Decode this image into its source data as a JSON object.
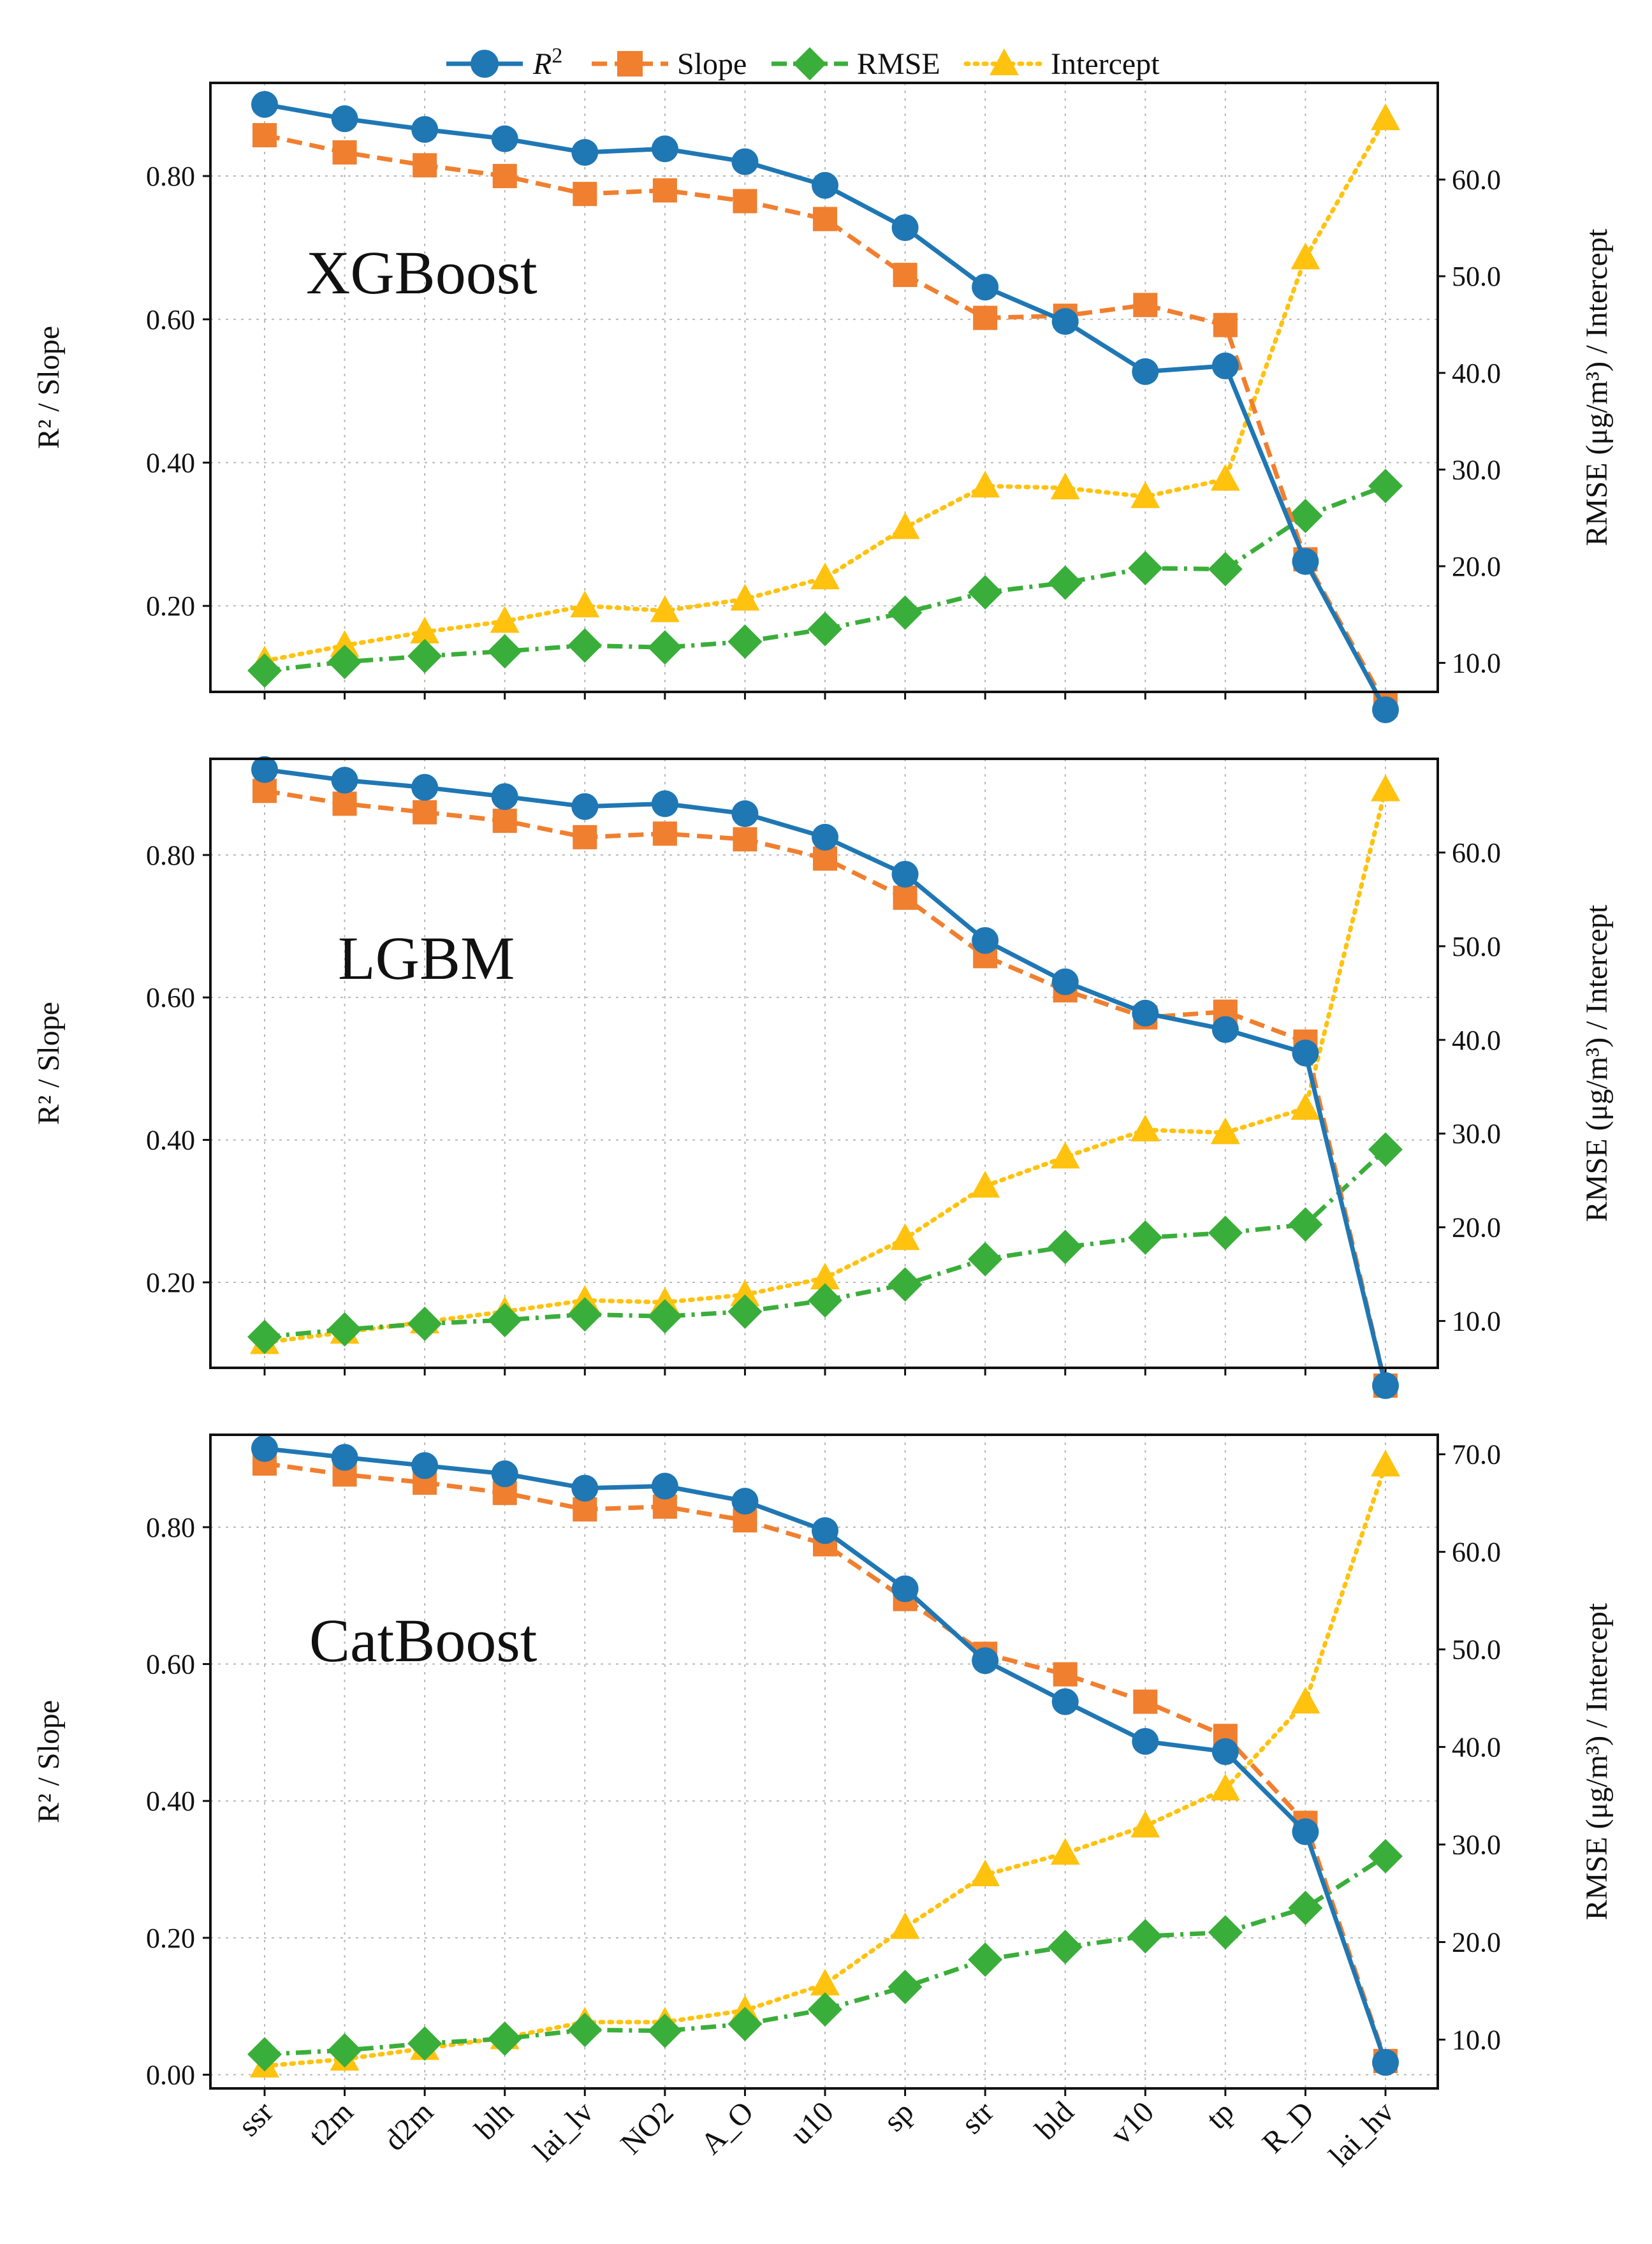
{
  "colors": {
    "r2": "#1f77b4",
    "slope": "#f07f2f",
    "rmse": "#3aae3a",
    "intercept": "#ffc20e"
  },
  "legend": {
    "r2": "R",
    "r2_sup": "2",
    "slope": "Slope",
    "rmse": "RMSE",
    "intercept": "Intercept"
  },
  "chart_data": [
    {
      "type": "line",
      "model": "XGBoost",
      "categories": [
        "ssr",
        "t2m",
        "d2m",
        "blh",
        "lai_lv",
        "NO2",
        "A_O",
        "u10",
        "sp",
        "str",
        "bld",
        "v10",
        "tp",
        "R_D",
        "lai_hv"
      ],
      "ylabel_left": "R² / Slope",
      "ylabel_right": "RMSE (μg/m³) / Intercept",
      "left_ylim": [
        0.08,
        0.93
      ],
      "left_ticks": [
        "0.20",
        "0.40",
        "0.60",
        "0.80"
      ],
      "right_ylim": [
        7.0,
        70.0
      ],
      "right_ticks": [
        "10.0",
        "20.0",
        "30.0",
        "40.0",
        "50.0",
        "60.0"
      ],
      "series": [
        {
          "name": "R2",
          "axis": "left",
          "values": [
            0.9,
            0.88,
            0.865,
            0.852,
            0.833,
            0.838,
            0.82,
            0.787,
            0.728,
            0.645,
            0.597,
            0.527,
            0.535,
            0.262,
            0.055
          ]
        },
        {
          "name": "Slope",
          "axis": "left",
          "values": [
            0.857,
            0.833,
            0.815,
            0.8,
            0.775,
            0.78,
            0.765,
            0.74,
            0.662,
            0.602,
            0.605,
            0.62,
            0.592,
            0.265,
            0.062
          ]
        },
        {
          "name": "RMSE",
          "axis": "right",
          "values": [
            9.2,
            10.1,
            10.7,
            11.2,
            11.8,
            11.6,
            12.2,
            13.5,
            15.2,
            17.3,
            18.3,
            19.8,
            19.7,
            25.2,
            28.3
          ]
        },
        {
          "name": "Intercept",
          "axis": "right",
          "values": [
            10.2,
            11.8,
            13.2,
            14.3,
            15.9,
            15.4,
            16.6,
            18.8,
            24.0,
            28.3,
            28.1,
            27.2,
            29.0,
            51.9,
            66.3
          ]
        }
      ],
      "xlabel": "",
      "title": ""
    },
    {
      "type": "line",
      "model": "LGBM",
      "categories": [
        "ssr",
        "t2m",
        "d2m",
        "blh",
        "lai_lv",
        "NO2",
        "A_O",
        "u10",
        "sp",
        "str",
        "bld",
        "v10",
        "tp",
        "R_D",
        "lai_hv"
      ],
      "ylabel_left": "R² / Slope",
      "ylabel_right": "RMSE (μg/m³) / Intercept",
      "left_ylim": [
        0.08,
        0.935
      ],
      "left_ticks": [
        "0.20",
        "0.40",
        "0.60",
        "0.80"
      ],
      "right_ylim": [
        5.0,
        70.0
      ],
      "right_ticks": [
        "10.0",
        "20.0",
        "30.0",
        "40.0",
        "50.0",
        "60.0"
      ],
      "series": [
        {
          "name": "R2",
          "axis": "left",
          "values": [
            0.92,
            0.905,
            0.895,
            0.882,
            0.868,
            0.872,
            0.858,
            0.825,
            0.773,
            0.68,
            0.622,
            0.578,
            0.555,
            0.522,
            0.055
          ]
        },
        {
          "name": "Slope",
          "axis": "left",
          "values": [
            0.89,
            0.872,
            0.86,
            0.848,
            0.825,
            0.83,
            0.822,
            0.795,
            0.74,
            0.658,
            0.61,
            0.572,
            0.58,
            0.538,
            0.055
          ]
        },
        {
          "name": "RMSE",
          "axis": "right",
          "values": [
            8.3,
            9.1,
            9.7,
            10.1,
            10.7,
            10.5,
            11.0,
            12.2,
            13.9,
            16.6,
            17.9,
            18.9,
            19.4,
            20.3,
            28.3
          ]
        },
        {
          "name": "Intercept",
          "axis": "right",
          "values": [
            7.7,
            8.8,
            9.9,
            11.0,
            12.2,
            12.0,
            12.8,
            14.6,
            18.8,
            24.4,
            27.5,
            30.4,
            30.1,
            32.7,
            66.7
          ]
        }
      ],
      "xlabel": "",
      "title": ""
    },
    {
      "type": "line",
      "model": "CatBoost",
      "categories": [
        "ssr",
        "t2m",
        "d2m",
        "blh",
        "lai_lv",
        "NO2",
        "A_O",
        "u10",
        "sp",
        "str",
        "bld",
        "v10",
        "tp",
        "R_D",
        "lai_hv"
      ],
      "ylabel_left": "R² / Slope",
      "ylabel_right": "RMSE (μg/m³) / Intercept",
      "left_ylim": [
        -0.02,
        0.935
      ],
      "left_ticks": [
        "0.00",
        "0.20",
        "0.40",
        "0.60",
        "0.80"
      ],
      "right_ylim": [
        5.0,
        72.0
      ],
      "right_ticks": [
        "10.0",
        "20.0",
        "30.0",
        "40.0",
        "50.0",
        "60.0",
        "70.0"
      ],
      "series": [
        {
          "name": "R2",
          "axis": "left",
          "values": [
            0.915,
            0.902,
            0.89,
            0.878,
            0.857,
            0.86,
            0.838,
            0.795,
            0.71,
            0.605,
            0.545,
            0.487,
            0.472,
            0.355,
            0.018
          ]
        },
        {
          "name": "Slope",
          "axis": "left",
          "values": [
            0.893,
            0.877,
            0.865,
            0.85,
            0.826,
            0.83,
            0.81,
            0.775,
            0.695,
            0.615,
            0.585,
            0.545,
            0.495,
            0.368,
            0.02
          ]
        },
        {
          "name": "RMSE",
          "axis": "right",
          "values": [
            8.5,
            8.9,
            9.6,
            10.1,
            11.0,
            10.9,
            11.6,
            13.1,
            15.4,
            18.2,
            19.5,
            20.6,
            21.0,
            23.5,
            28.8
          ]
        },
        {
          "name": "Intercept",
          "axis": "right",
          "values": [
            7.3,
            8.0,
            9.1,
            10.2,
            11.8,
            11.8,
            13.0,
            15.7,
            21.5,
            26.9,
            29.1,
            31.9,
            35.7,
            44.6,
            68.9
          ]
        }
      ],
      "xlabel": "",
      "title": ""
    }
  ]
}
